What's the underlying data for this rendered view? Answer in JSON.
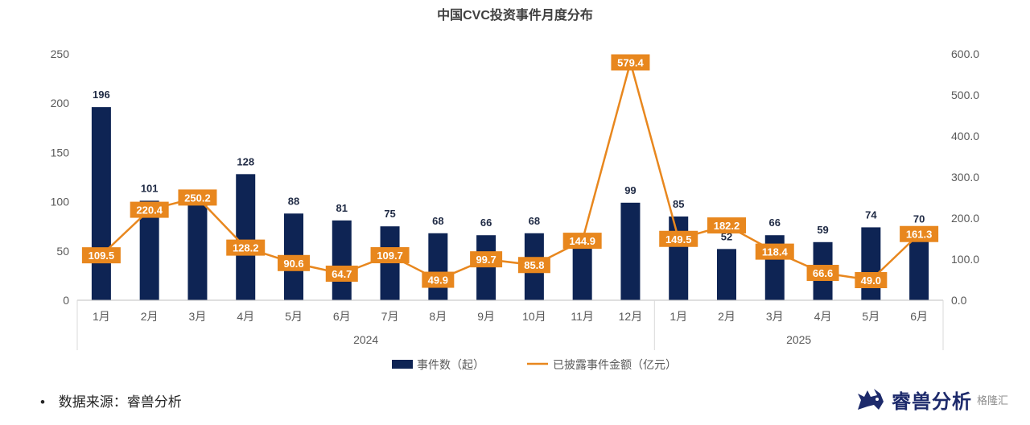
{
  "chart_data": {
    "type": "bar+line",
    "title": "中国CVC投资事件月度分布",
    "categories": [
      "1月",
      "2月",
      "3月",
      "4月",
      "5月",
      "6月",
      "7月",
      "8月",
      "9月",
      "10月",
      "11月",
      "12月",
      "1月",
      "2月",
      "3月",
      "4月",
      "5月",
      "6月"
    ],
    "groups": [
      {
        "label": "2024",
        "start": 0,
        "end": 11
      },
      {
        "label": "2025",
        "start": 12,
        "end": 17
      }
    ],
    "series": [
      {
        "name": "事件数（起）",
        "type": "bar",
        "axis": "left",
        "values": [
          196,
          101,
          109,
          128,
          88,
          81,
          75,
          68,
          66,
          68,
          65,
          99,
          85,
          52,
          66,
          59,
          74,
          70
        ],
        "labels": [
          "196",
          "101",
          "",
          "128",
          "88",
          "81",
          "75",
          "68",
          "66",
          "68",
          "",
          "99",
          "85",
          "52",
          "66",
          "59",
          "74",
          "70"
        ]
      },
      {
        "name": "已披露事件金额（亿元）",
        "type": "line",
        "axis": "right",
        "values": [
          109.5,
          220.4,
          250.2,
          128.2,
          90.6,
          64.7,
          109.7,
          49.9,
          99.7,
          85.8,
          144.9,
          579.4,
          149.5,
          182.2,
          118.4,
          66.6,
          49.0,
          161.3
        ],
        "labels": [
          "109.5",
          "220.4",
          "250.2",
          "128.2",
          "90.6",
          "64.7",
          "109.7",
          "49.9",
          "99.7",
          "85.8",
          "144.9",
          "579.4",
          "149.5",
          "182.2",
          "118.4",
          "66.6",
          "49.0",
          "161.3"
        ]
      }
    ],
    "y_left": {
      "min": 0,
      "max": 250,
      "ticks": [
        "0",
        "50",
        "100",
        "150",
        "200",
        "250"
      ]
    },
    "y_right": {
      "min": 0,
      "max": 600,
      "ticks": [
        "0.0",
        "100.0",
        "200.0",
        "300.0",
        "400.0",
        "500.0",
        "600.0"
      ]
    },
    "legend_position": "bottom",
    "grid": false,
    "colors": {
      "bar": "#0e2454",
      "line": "#e8871e",
      "label_box": "#e8871e"
    }
  },
  "footer": {
    "bullet": "•",
    "source": "数据来源：睿兽分析"
  },
  "brand": {
    "name": "睿兽分析",
    "icon": "unicorn-logo-icon",
    "watermark": "格隆汇"
  }
}
